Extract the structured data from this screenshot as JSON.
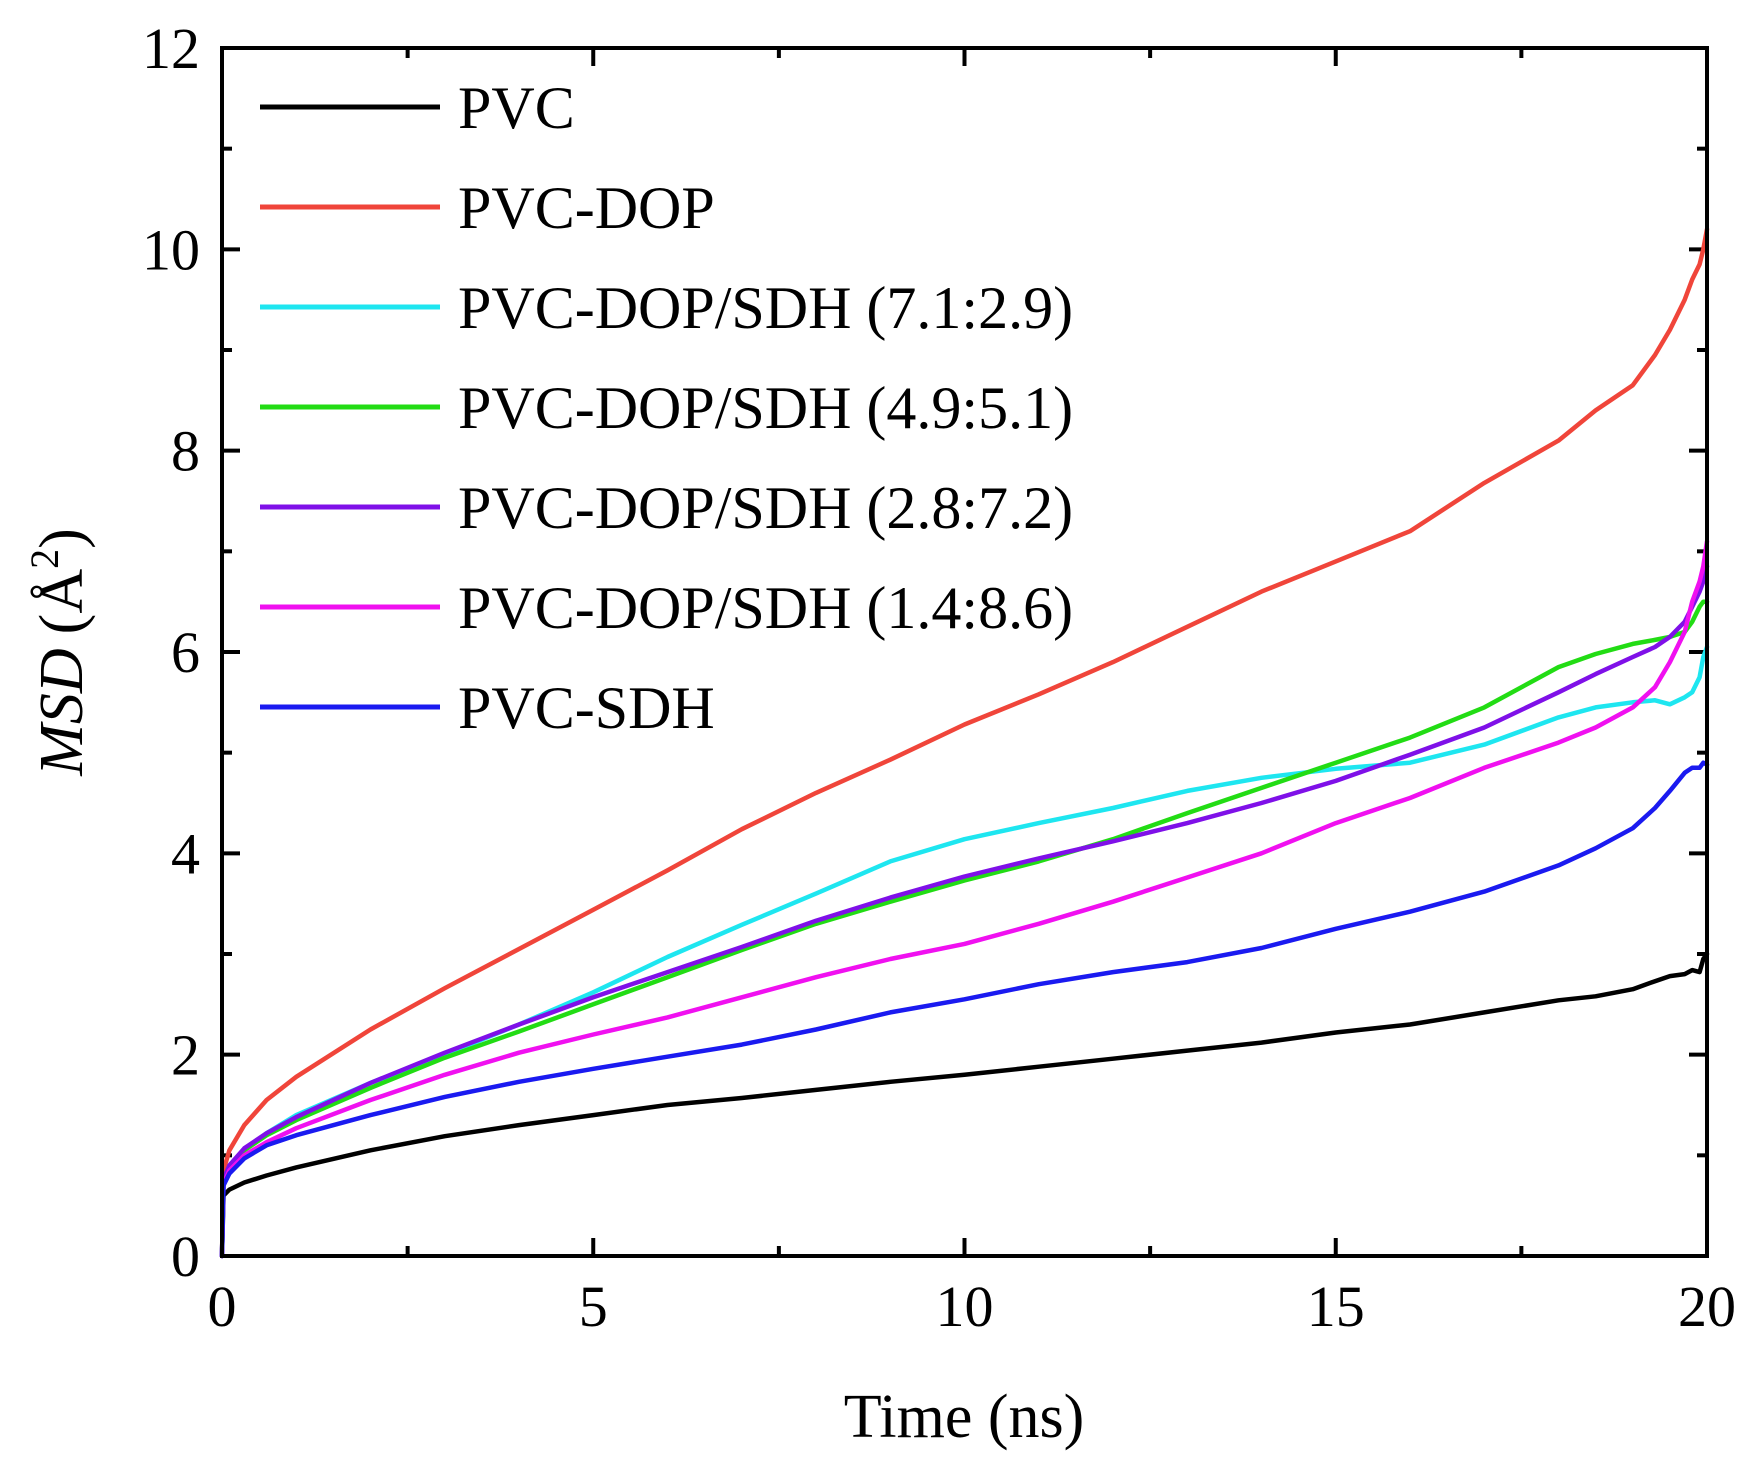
{
  "chart_data": {
    "type": "line",
    "title": "",
    "xlabel": "Time (ns)",
    "ylabel_italic": "MSD",
    "ylabel_unit": "(Å",
    "ylabel_sup": "2",
    "ylabel_close": ")",
    "xlim": [
      0,
      20
    ],
    "ylim": [
      0,
      12
    ],
    "xticks": [
      0,
      5,
      10,
      15,
      20
    ],
    "yticks": [
      0,
      2,
      4,
      6,
      8,
      10,
      12
    ],
    "xtick_labels": [
      "0",
      "5",
      "10",
      "15",
      "20"
    ],
    "ytick_labels": [
      "0",
      "2",
      "4",
      "6",
      "8",
      "10",
      "12"
    ],
    "grid": false,
    "legend_position": "top-left",
    "x": [
      0,
      0.02,
      0.1,
      0.3,
      0.6,
      1,
      2,
      3,
      4,
      5,
      6,
      7,
      8,
      9,
      10,
      11,
      12,
      13,
      14,
      15,
      16,
      17,
      18,
      18.5,
      19,
      19.3,
      19.5,
      19.7,
      19.8,
      19.9,
      19.95,
      20
    ],
    "series": [
      {
        "name": "PVC",
        "color": "#000000",
        "values": [
          0,
          0.6,
          0.66,
          0.73,
          0.8,
          0.88,
          1.05,
          1.19,
          1.3,
          1.4,
          1.5,
          1.57,
          1.65,
          1.73,
          1.8,
          1.88,
          1.96,
          2.04,
          2.12,
          2.22,
          2.3,
          2.42,
          2.54,
          2.58,
          2.65,
          2.73,
          2.78,
          2.8,
          2.84,
          2.82,
          2.95,
          3.0
        ]
      },
      {
        "name": "PVC-DOP",
        "color": "#f0453a",
        "values": [
          0,
          0.85,
          1.05,
          1.3,
          1.55,
          1.78,
          2.25,
          2.66,
          3.05,
          3.44,
          3.83,
          4.24,
          4.6,
          4.93,
          5.28,
          5.58,
          5.9,
          6.25,
          6.6,
          6.9,
          7.2,
          7.68,
          8.1,
          8.4,
          8.65,
          8.95,
          9.2,
          9.5,
          9.7,
          9.85,
          10.0,
          10.2
        ]
      },
      {
        "name": "PVC-DOP/SDH (7.1:2.9)",
        "color": "#1ee6f0",
        "values": [
          0,
          0.75,
          0.88,
          1.05,
          1.22,
          1.4,
          1.72,
          2.0,
          2.3,
          2.62,
          2.97,
          3.29,
          3.6,
          3.92,
          4.14,
          4.3,
          4.45,
          4.62,
          4.75,
          4.84,
          4.9,
          5.08,
          5.35,
          5.45,
          5.5,
          5.52,
          5.48,
          5.55,
          5.6,
          5.75,
          5.95,
          6.05
        ]
      },
      {
        "name": "PVC-DOP/SDH (4.9:5.1)",
        "color": "#22dc14",
        "values": [
          0,
          0.75,
          0.88,
          1.05,
          1.2,
          1.35,
          1.67,
          1.97,
          2.23,
          2.5,
          2.77,
          3.04,
          3.3,
          3.52,
          3.73,
          3.92,
          4.14,
          4.4,
          4.65,
          4.9,
          5.15,
          5.45,
          5.85,
          5.98,
          6.08,
          6.12,
          6.15,
          6.2,
          6.3,
          6.45,
          6.5,
          6.5
        ]
      },
      {
        "name": "PVC-DOP/SDH (2.8:7.2)",
        "color": "#7f10e8",
        "values": [
          0,
          0.76,
          0.9,
          1.07,
          1.22,
          1.38,
          1.72,
          2.02,
          2.3,
          2.57,
          2.82,
          3.07,
          3.33,
          3.56,
          3.77,
          3.95,
          4.12,
          4.3,
          4.5,
          4.72,
          4.98,
          5.25,
          5.6,
          5.78,
          5.95,
          6.05,
          6.15,
          6.3,
          6.45,
          6.6,
          6.7,
          6.85
        ]
      },
      {
        "name": "PVC-DOP/SDH (1.4:8.6)",
        "color": "#f010f0",
        "values": [
          0,
          0.72,
          0.85,
          1.0,
          1.13,
          1.27,
          1.55,
          1.8,
          2.02,
          2.2,
          2.37,
          2.57,
          2.77,
          2.95,
          3.1,
          3.3,
          3.52,
          3.76,
          4.0,
          4.3,
          4.55,
          4.85,
          5.1,
          5.25,
          5.45,
          5.65,
          5.9,
          6.2,
          6.5,
          6.7,
          6.85,
          7.1
        ]
      },
      {
        "name": "PVC-SDH",
        "color": "#1a1af0",
        "values": [
          0,
          0.7,
          0.82,
          0.97,
          1.1,
          1.2,
          1.4,
          1.58,
          1.73,
          1.86,
          1.98,
          2.1,
          2.25,
          2.42,
          2.55,
          2.7,
          2.82,
          2.92,
          3.06,
          3.25,
          3.42,
          3.62,
          3.88,
          4.05,
          4.25,
          4.45,
          4.62,
          4.8,
          4.85,
          4.85,
          4.9,
          4.88
        ]
      }
    ]
  }
}
